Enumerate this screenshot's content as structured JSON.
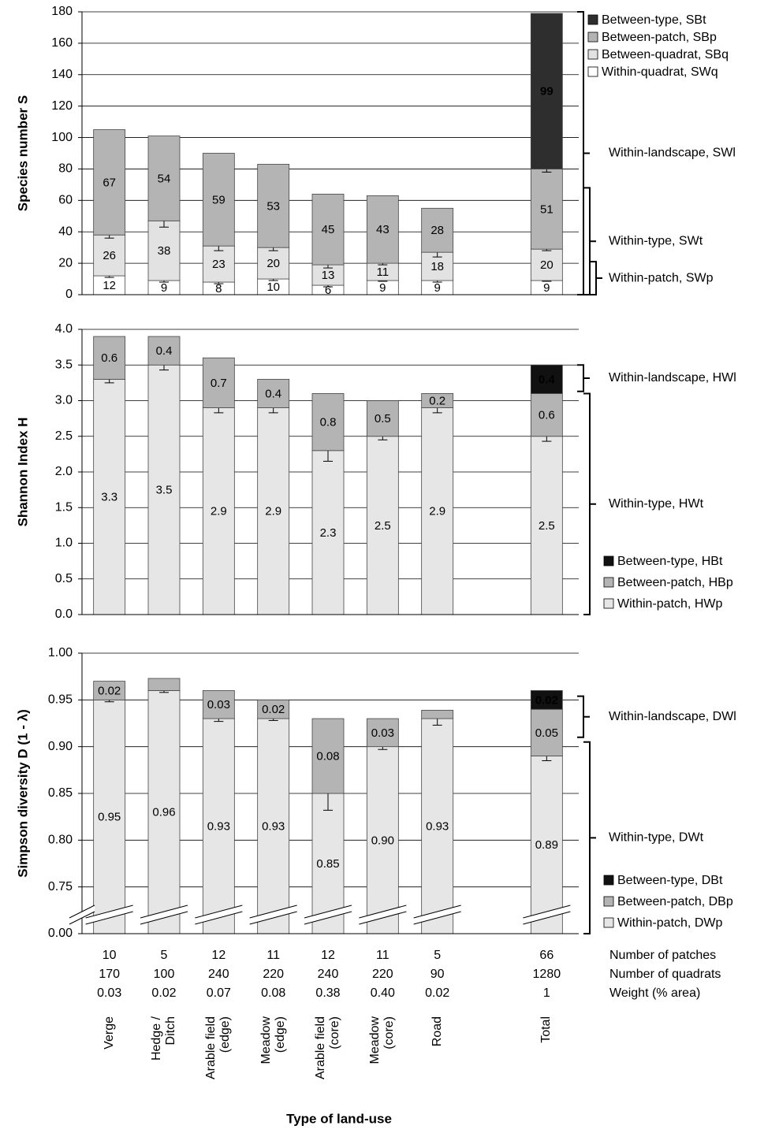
{
  "chart_data": [
    {
      "type": "bar",
      "stacked": true,
      "ylabel": "Species number S",
      "ylim": [
        0,
        180
      ],
      "yticks": [
        0,
        20,
        40,
        60,
        80,
        100,
        120,
        140,
        160,
        180
      ],
      "grid": true,
      "legend": "upper right",
      "series": [
        {
          "name": "Within-quadrat, SWq",
          "color": "#ffffff",
          "values": [
            12,
            9,
            8,
            10,
            6,
            9,
            9,
            null,
            9
          ],
          "errors": [
            1,
            1,
            1,
            1,
            1,
            0.5,
            1,
            null,
            0.5
          ]
        },
        {
          "name": "Between-quadrat, SBq",
          "color": "#e2e2e2",
          "values": [
            26,
            38,
            23,
            20,
            13,
            11,
            18,
            null,
            20
          ],
          "errors": [
            2,
            4,
            3,
            2,
            2,
            1,
            3,
            null,
            1
          ]
        },
        {
          "name": "Between-patch, SBp",
          "color": "#b4b4b4",
          "values": [
            67,
            54,
            59,
            53,
            45,
            43,
            28,
            null,
            51
          ],
          "errors": [
            null,
            null,
            null,
            null,
            null,
            null,
            null,
            null,
            2
          ]
        },
        {
          "name": "Between-type, SBt",
          "color": "#2e2e2e",
          "values": [
            null,
            null,
            null,
            null,
            null,
            null,
            null,
            null,
            99
          ]
        }
      ],
      "brackets": [
        {
          "label": "Within-landscape, SWl",
          "range": [
            0,
            180
          ]
        },
        {
          "label": "Within-type, SWt",
          "range": [
            0,
            68
          ]
        },
        {
          "label": "Within-patch, SWp",
          "range": [
            0,
            21
          ]
        }
      ]
    },
    {
      "type": "bar",
      "stacked": true,
      "ylabel": "Shannon Index H",
      "ylim": [
        0,
        4
      ],
      "yticks": [
        {
          "value": 0,
          "label": "0.0"
        },
        0.5,
        {
          "value": 1,
          "label": "1.0"
        },
        1.5,
        {
          "value": 2,
          "label": "2.0"
        },
        2.5,
        {
          "value": 3,
          "label": "3.0"
        },
        3.5,
        {
          "value": 4,
          "label": "4.0"
        }
      ],
      "grid": true,
      "legend": "lower right",
      "series": [
        {
          "name": "Within-patch, HWp",
          "color": "#e6e6e6",
          "values": [
            3.3,
            3.5,
            2.9,
            2.9,
            2.3,
            2.5,
            2.9,
            null,
            2.5
          ],
          "errors": [
            0.05,
            0.07,
            0.07,
            0.07,
            0.15,
            0.05,
            0.07,
            null,
            0.07
          ]
        },
        {
          "name": "Between-patch, HBp",
          "color": "#b4b4b4",
          "values": [
            0.6,
            0.4,
            0.7,
            0.4,
            0.8,
            0.5,
            0.2,
            null,
            0.6
          ]
        },
        {
          "name": "Between-type, HBt",
          "color": "#111111",
          "values": [
            null,
            null,
            null,
            null,
            null,
            null,
            null,
            null,
            0.4
          ]
        }
      ],
      "brackets": [
        {
          "label": "Within-landscape, HWl",
          "range": [
            3.13,
            3.5
          ]
        },
        {
          "label": "Within-type, HWt",
          "range": [
            0,
            3.1
          ]
        }
      ]
    },
    {
      "type": "bar",
      "stacked": true,
      "ylabel": "Simpson diversity D (1 - λ)",
      "xlabel": "Type of land-use",
      "categories": [
        "Verge",
        "Hedge /\nDitch",
        "Arable field\n(edge)",
        "Meadow\n(edge)",
        "Arable field\n(core)",
        "Meadow\n(core)",
        "Road",
        null,
        "Total"
      ],
      "ylim": [
        0,
        1
      ],
      "axis_break": [
        0,
        0.7
      ],
      "yticks": [
        {
          "value": 0,
          "label": "0.00"
        },
        0.75,
        {
          "value": 0.8,
          "label": "0.80"
        },
        0.85,
        {
          "value": 0.9,
          "label": "0.90"
        },
        0.95,
        {
          "value": 1,
          "label": "1.00"
        }
      ],
      "grid": true,
      "legend": "lower right",
      "series": [
        {
          "name": "Within-patch, DWp",
          "color": "#e6e6e6",
          "values": [
            0.95,
            0.96,
            0.93,
            0.93,
            0.85,
            0.9,
            0.93,
            null,
            0.89
          ],
          "value_labels": [
            "0.95",
            "0.96",
            "0.93",
            "0.93",
            "0.85",
            "0.90",
            "0.93",
            null,
            "0.89"
          ],
          "errors": [
            0.002,
            0.002,
            0.003,
            0.002,
            0.018,
            0.003,
            0.007,
            null,
            0.005
          ]
        },
        {
          "name": "Between-patch, DBp",
          "color": "#b4b4b4",
          "values": [
            0.02,
            0.013,
            0.03,
            0.02,
            0.08,
            0.03,
            0.009,
            null,
            0.05
          ],
          "value_labels": [
            "0.02",
            null,
            "0.03",
            "0.02",
            "0.08",
            "0.03",
            null,
            null,
            "0.05"
          ]
        },
        {
          "name": "Between-type, DBt",
          "color": "#111111",
          "values": [
            null,
            null,
            null,
            null,
            null,
            null,
            null,
            null,
            0.02
          ],
          "value_labels": [
            null,
            null,
            null,
            null,
            null,
            null,
            null,
            null,
            "0.02"
          ]
        }
      ],
      "brackets": [
        {
          "label": "Within-landscape, DWl",
          "range": [
            0.91,
            0.954
          ]
        },
        {
          "label": "Within-type, DWt",
          "range": [
            0,
            0.905
          ]
        }
      ]
    }
  ],
  "table": {
    "rows": [
      {
        "label": "Number of patches",
        "cells": [
          "10",
          "5",
          "12",
          "11",
          "12",
          "11",
          "5",
          null,
          "66"
        ]
      },
      {
        "label": "Number of quadrats",
        "cells": [
          "170",
          "100",
          "240",
          "220",
          "240",
          "220",
          "90",
          null,
          "1280"
        ]
      },
      {
        "label": "Weight (% area)",
        "cells": [
          "0.03",
          "0.02",
          "0.07",
          "0.08",
          "0.38",
          "0.40",
          "0.02",
          null,
          "1"
        ]
      }
    ]
  }
}
